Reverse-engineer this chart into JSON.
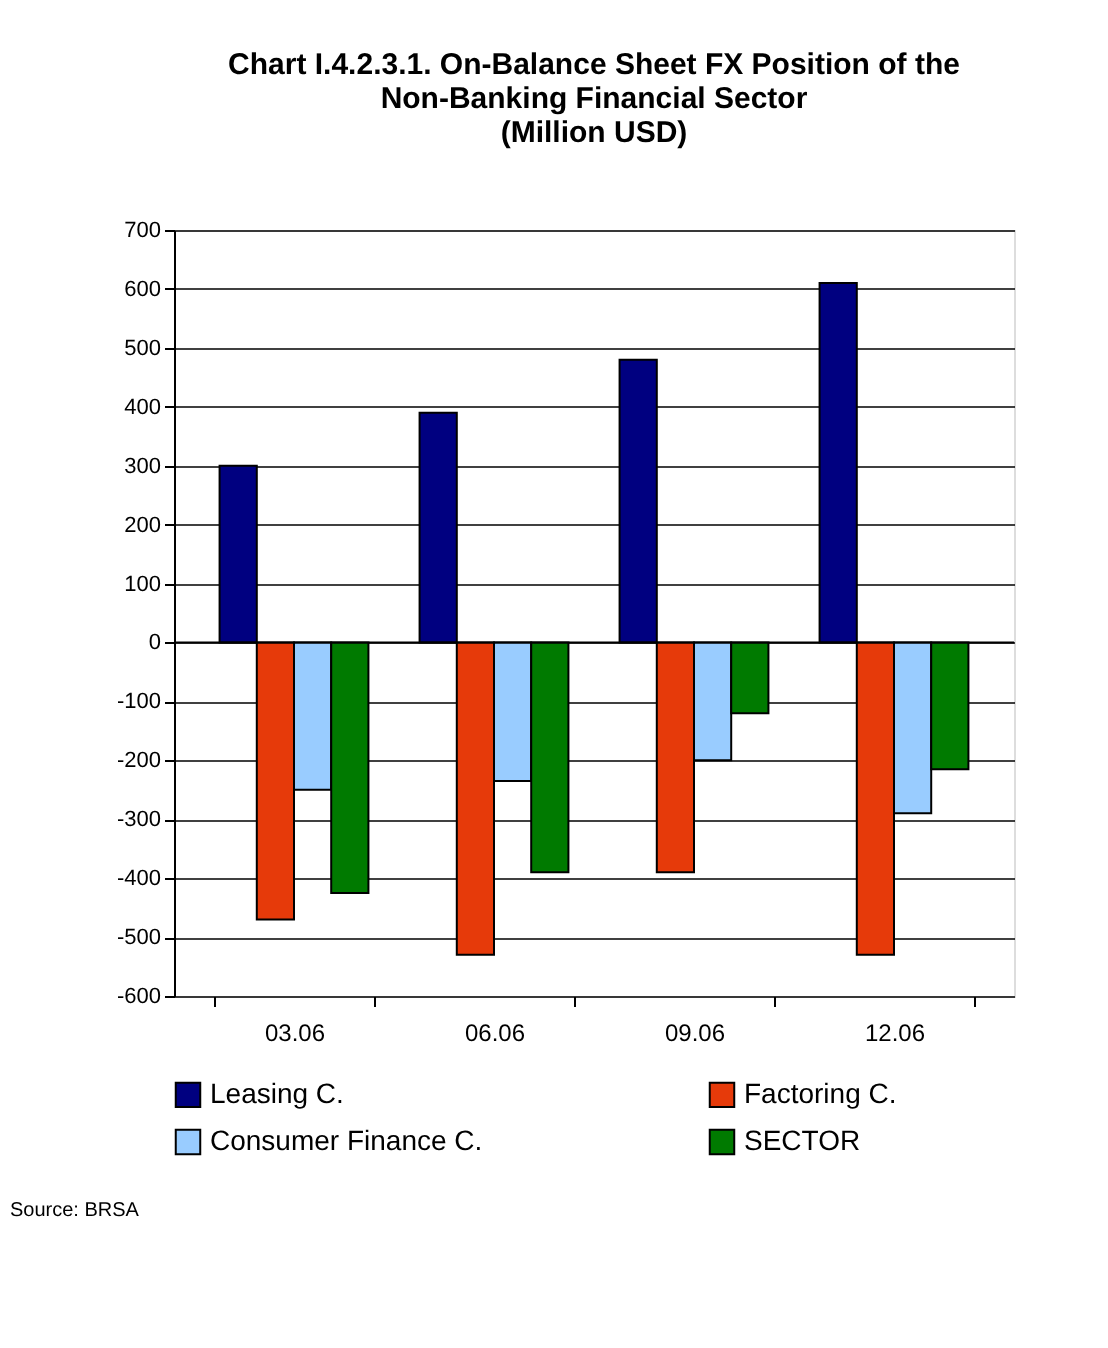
{
  "chart_data": {
    "type": "bar",
    "title": [
      "Chart I.4.2.3.1. On-Balance Sheet FX Position of the",
      "Non-Banking Financial Sector",
      "(Million USD)"
    ],
    "categories": [
      "03.06",
      "06.06",
      "09.06",
      "12.06"
    ],
    "series": [
      {
        "name": "Leasing C.",
        "color": "#000080",
        "values": [
          300,
          390,
          480,
          610
        ]
      },
      {
        "name": "Factoring C.",
        "color": "#e63a0a",
        "values": [
          -470,
          -530,
          -390,
          -530
        ]
      },
      {
        "name": "Consumer Finance C.",
        "color": "#99ccff",
        "values": [
          -250,
          -235,
          -200,
          -290
        ]
      },
      {
        "name": "SECTOR",
        "color": "#007a00",
        "values": [
          -425,
          -390,
          -120,
          -215
        ]
      }
    ],
    "ylim": [
      -600,
      700
    ],
    "yticks": [
      -600,
      -500,
      -400,
      -300,
      -200,
      -100,
      0,
      100,
      200,
      300,
      400,
      500,
      600,
      700
    ],
    "grid": "y",
    "legend": "bottom",
    "annotations": [
      "Source: BRSA"
    ]
  }
}
